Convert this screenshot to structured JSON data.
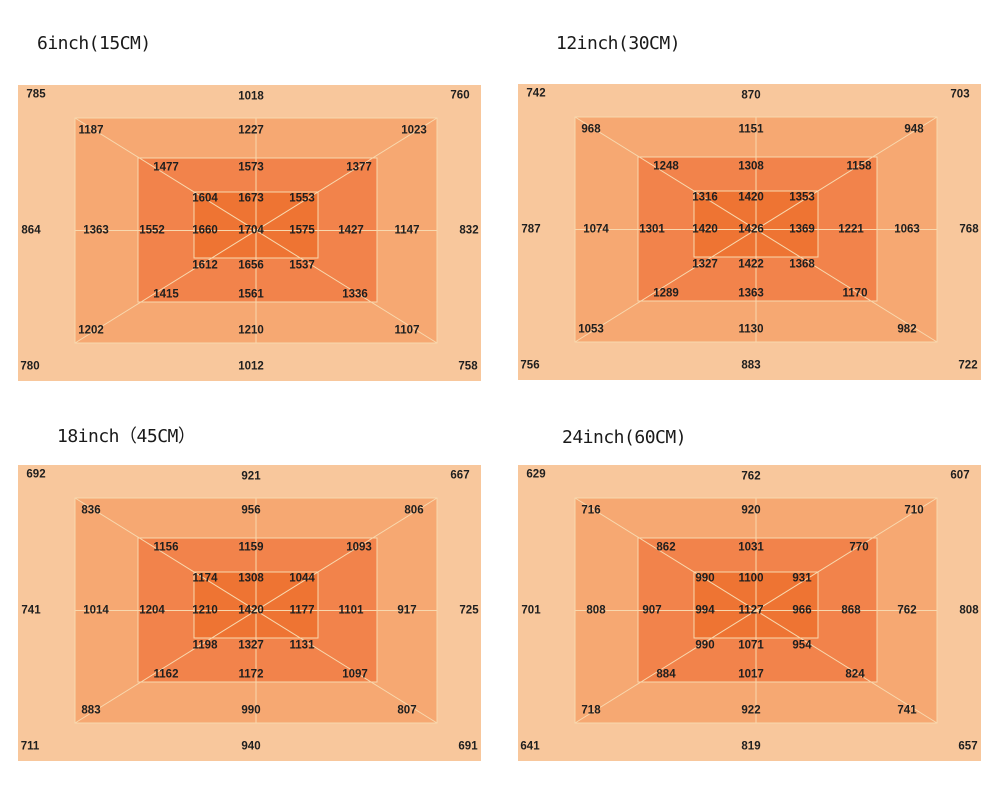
{
  "page": {
    "background": "#ffffff"
  },
  "colors": {
    "band1": "#f8c79c",
    "band2": "#f6a872",
    "band3": "#f2834b",
    "band4": "#ee7433",
    "line": "#f8d8ae",
    "number_text": "#1f1f1f",
    "title_text": "#1a1a1a"
  },
  "chart_data": [
    {
      "type": "heatmap",
      "title": "6inch(15CM)",
      "rings": {
        "ring1": {
          "tl": 785,
          "t": 1018,
          "tr": 760,
          "l": 864,
          "r": 832,
          "bl": 780,
          "b": 1012,
          "br": 758
        },
        "ring2": {
          "tl": 1187,
          "t": 1227,
          "tr": 1023,
          "l": 1363,
          "r": 1147,
          "bl": 1202,
          "b": 1210,
          "br": 1107
        },
        "ring3": {
          "tl": 1477,
          "t": 1573,
          "tr": 1377,
          "l": 1552,
          "r": 1427,
          "bl": 1415,
          "b": 1561,
          "br": 1336
        }
      },
      "center_grid": [
        [
          1604,
          1673,
          1553
        ],
        [
          1660,
          1704,
          1575
        ],
        [
          1612,
          1656,
          1537
        ]
      ]
    },
    {
      "type": "heatmap",
      "title": "12inch(30CM)",
      "rings": {
        "ring1": {
          "tl": 742,
          "t": 870,
          "tr": 703,
          "l": 787,
          "r": 768,
          "bl": 756,
          "b": 883,
          "br": 722
        },
        "ring2": {
          "tl": 968,
          "t": 1151,
          "tr": 948,
          "l": 1074,
          "r": 1063,
          "bl": 1053,
          "b": 1130,
          "br": 982
        },
        "ring3": {
          "tl": 1248,
          "t": 1308,
          "tr": 1158,
          "l": 1301,
          "r": 1221,
          "bl": 1289,
          "b": 1363,
          "br": 1170
        }
      },
      "center_grid": [
        [
          1316,
          1420,
          1353
        ],
        [
          1420,
          1426,
          1369
        ],
        [
          1327,
          1422,
          1368
        ]
      ]
    },
    {
      "type": "heatmap",
      "title": "18inch（45CM）",
      "rings": {
        "ring1": {
          "tl": 692,
          "t": 921,
          "tr": 667,
          "l": 741,
          "r": 725,
          "bl": 711,
          "b": 940,
          "br": 691
        },
        "ring2": {
          "tl": 836,
          "t": 956,
          "tr": 806,
          "l": 1014,
          "r": 917,
          "bl": 883,
          "b": 990,
          "br": 807
        },
        "ring3": {
          "tl": 1156,
          "t": 1159,
          "tr": 1093,
          "l": 1204,
          "r": 1101,
          "bl": 1162,
          "b": 1172,
          "br": 1097
        }
      },
      "center_grid": [
        [
          1174,
          1308,
          1044
        ],
        [
          1210,
          1420,
          1177
        ],
        [
          1198,
          1327,
          1131
        ]
      ]
    },
    {
      "type": "heatmap",
      "title": "24inch(60CM)",
      "rings": {
        "ring1": {
          "tl": 629,
          "t": 762,
          "tr": 607,
          "l": 701,
          "r": 808,
          "bl": 641,
          "b": 819,
          "br": 657
        },
        "ring2": {
          "tl": 716,
          "t": 920,
          "tr": 710,
          "l": 808,
          "r": 762,
          "bl": 718,
          "b": 922,
          "br": 741
        },
        "ring3": {
          "tl": 862,
          "t": 1031,
          "tr": 770,
          "l": 907,
          "r": 868,
          "bl": 884,
          "b": 1017,
          "br": 824
        }
      },
      "center_grid": [
        [
          990,
          1100,
          931
        ],
        [
          994,
          1127,
          966
        ],
        [
          990,
          1071,
          954
        ]
      ]
    }
  ]
}
